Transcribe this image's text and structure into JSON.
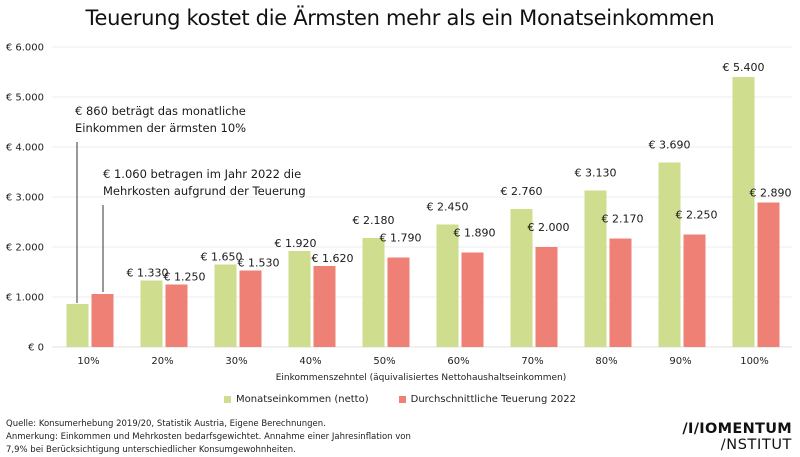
{
  "chart_data": {
    "type": "bar",
    "title": "Teuerung kostet die Ärmsten mehr als ein Monatseinkommen",
    "xlabel": "Einkommenszehntel (äquivalisiertes Nettohaushaltseinkommen)",
    "ylabel": "",
    "ylim": [
      0,
      6000
    ],
    "yticks": [
      0,
      1000,
      2000,
      3000,
      4000,
      5000,
      6000
    ],
    "ytick_labels": [
      "€ 0",
      "€ 1.000",
      "€ 2.000",
      "€ 3.000",
      "€ 4.000",
      "€ 5.000",
      "€ 6.000"
    ],
    "grid": true,
    "legend_position": "bottom-center",
    "categories": [
      "10%",
      "20%",
      "30%",
      "40%",
      "50%",
      "60%",
      "70%",
      "80%",
      "90%",
      "100%"
    ],
    "series": [
      {
        "name": "Monatseinkommen (netto)",
        "color": "#cfdd8e",
        "values": [
          860,
          1330,
          1650,
          1920,
          2180,
          2450,
          2760,
          3130,
          3690,
          5400
        ],
        "labels": [
          "",
          "€ 1.330",
          "€ 1.650",
          "€ 1.920",
          "€ 2.180",
          "€ 2.450",
          "€ 2.760",
          "€ 3.130",
          "€ 3.690",
          "€ 5.400"
        ]
      },
      {
        "name": "Durchschnittliche Teuerung 2022",
        "color": "#ee8075",
        "values": [
          1060,
          1250,
          1530,
          1620,
          1790,
          1890,
          2000,
          2170,
          2250,
          2890
        ],
        "labels": [
          "",
          "€ 1.250",
          "€ 1.530",
          "€ 1.620",
          "€ 1.790",
          "€ 1.890",
          "€ 2.000",
          "€ 2.170",
          "€ 2.250",
          "€ 2.890"
        ]
      }
    ],
    "annotations": [
      {
        "target": "10% Monatseinkommen",
        "lines": [
          "€ 860 beträgt das monatliche",
          "Einkommen der ärmsten 10%"
        ]
      },
      {
        "target": "10% Teuerung",
        "lines": [
          "€ 1.060 betragen im Jahr 2022 die",
          "Mehrkosten aufgrund der Teuerung"
        ]
      }
    ]
  },
  "footer": {
    "source": "Quelle: Konsumerhebung 2019/20, Statistik Austria, Eigene Berechnungen.",
    "note_line1": "Anmerkung: Einkommen und Mehrkosten bedarfsgewichtet. Annahme einer Jahresinflation von",
    "note_line2": "7,9% bei Berücksichtigung unterschiedlicher Konsumgewohnheiten."
  },
  "logo": {
    "line1": "/I/IOMENTUM",
    "line2": "/NSTITUT"
  }
}
